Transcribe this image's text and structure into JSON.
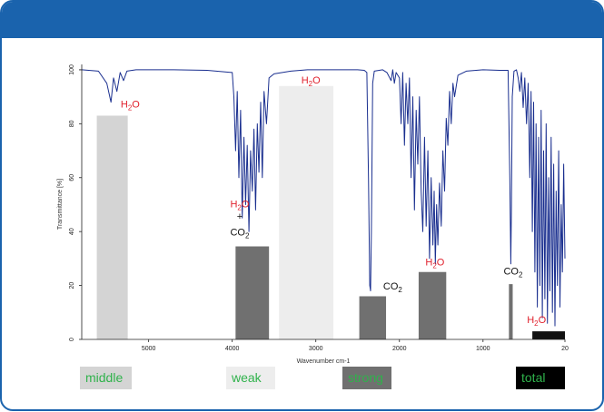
{
  "chart_data": {
    "type": "line",
    "title": "",
    "xlabel": "Wavenumber cm-1",
    "ylabel": "Transmittance [%]",
    "xlim": [
      5800,
      20
    ],
    "ylim": [
      0,
      102
    ],
    "x_ticks": [
      5000,
      4000,
      3000,
      2000,
      1000,
      20
    ],
    "y_ticks": [
      0,
      20,
      40,
      60,
      80,
      100
    ],
    "line_color": "#1a2f8f",
    "series": [
      {
        "points": [
          [
            5800,
            100
          ],
          [
            5600,
            99.5
          ],
          [
            5500,
            95
          ],
          [
            5450,
            88
          ],
          [
            5420,
            97
          ],
          [
            5380,
            92
          ],
          [
            5340,
            99
          ],
          [
            5300,
            96
          ],
          [
            5260,
            99.5
          ],
          [
            5150,
            100
          ],
          [
            4700,
            100
          ],
          [
            4300,
            99.8
          ],
          [
            4000,
            99
          ],
          [
            3980,
            90
          ],
          [
            3960,
            70
          ],
          [
            3940,
            92
          ],
          [
            3920,
            60
          ],
          [
            3900,
            85
          ],
          [
            3880,
            45
          ],
          [
            3860,
            75
          ],
          [
            3840,
            50
          ],
          [
            3820,
            72
          ],
          [
            3800,
            40
          ],
          [
            3780,
            70
          ],
          [
            3760,
            55
          ],
          [
            3740,
            78
          ],
          [
            3720,
            48
          ],
          [
            3700,
            80
          ],
          [
            3680,
            62
          ],
          [
            3660,
            88
          ],
          [
            3640,
            60
          ],
          [
            3620,
            92
          ],
          [
            3590,
            80
          ],
          [
            3560,
            97
          ],
          [
            3500,
            98.5
          ],
          [
            3300,
            99.5
          ],
          [
            3100,
            100
          ],
          [
            2800,
            100
          ],
          [
            2500,
            100
          ],
          [
            2420,
            99.8
          ],
          [
            2390,
            99
          ],
          [
            2370,
            60
          ],
          [
            2355,
            20
          ],
          [
            2345,
            18
          ],
          [
            2335,
            40
          ],
          [
            2320,
            95
          ],
          [
            2300,
            99.5
          ],
          [
            2200,
            100
          ],
          [
            2150,
            99
          ],
          [
            2100,
            96
          ],
          [
            2080,
            100
          ],
          [
            2060,
            95
          ],
          [
            2040,
            99
          ],
          [
            2000,
            97
          ],
          [
            1980,
            80
          ],
          [
            1960,
            99
          ],
          [
            1940,
            72
          ],
          [
            1920,
            95
          ],
          [
            1900,
            80
          ],
          [
            1880,
            97
          ],
          [
            1860,
            60
          ],
          [
            1840,
            90
          ],
          [
            1820,
            48
          ],
          [
            1800,
            85
          ],
          [
            1780,
            65
          ],
          [
            1760,
            90
          ],
          [
            1740,
            55
          ],
          [
            1720,
            40
          ],
          [
            1700,
            75
          ],
          [
            1680,
            42
          ],
          [
            1660,
            70
          ],
          [
            1640,
            30
          ],
          [
            1620,
            60
          ],
          [
            1600,
            35
          ],
          [
            1585,
            55
          ],
          [
            1570,
            28
          ],
          [
            1555,
            50
          ],
          [
            1540,
            35
          ],
          [
            1520,
            58
          ],
          [
            1500,
            42
          ],
          [
            1480,
            70
          ],
          [
            1460,
            55
          ],
          [
            1440,
            82
          ],
          [
            1420,
            72
          ],
          [
            1400,
            92
          ],
          [
            1380,
            80
          ],
          [
            1360,
            95
          ],
          [
            1340,
            90
          ],
          [
            1300,
            98
          ],
          [
            1200,
            99.5
          ],
          [
            1000,
            100
          ],
          [
            800,
            99.8
          ],
          [
            700,
            99.8
          ],
          [
            680,
            60
          ],
          [
            668,
            28
          ],
          [
            660,
            50
          ],
          [
            650,
            90
          ],
          [
            630,
            99.5
          ],
          [
            600,
            100
          ],
          [
            580,
            97
          ],
          [
            560,
            92
          ],
          [
            540,
            99
          ],
          [
            520,
            86
          ],
          [
            500,
            97
          ],
          [
            480,
            80
          ],
          [
            460,
            95
          ],
          [
            440,
            60
          ],
          [
            425,
            92
          ],
          [
            410,
            40
          ],
          [
            395,
            88
          ],
          [
            380,
            25
          ],
          [
            365,
            80
          ],
          [
            350,
            12
          ],
          [
            335,
            75
          ],
          [
            320,
            20
          ],
          [
            305,
            85
          ],
          [
            290,
            8
          ],
          [
            275,
            70
          ],
          [
            260,
            15
          ],
          [
            245,
            80
          ],
          [
            230,
            6
          ],
          [
            215,
            60
          ],
          [
            200,
            18
          ],
          [
            185,
            75
          ],
          [
            170,
            10
          ],
          [
            155,
            65
          ],
          [
            140,
            5
          ],
          [
            125,
            55
          ],
          [
            110,
            20
          ],
          [
            95,
            70
          ],
          [
            80,
            12
          ],
          [
            65,
            50
          ],
          [
            50,
            25
          ],
          [
            35,
            65
          ],
          [
            20,
            30
          ]
        ]
      }
    ],
    "bars": [
      {
        "name": "middle",
        "x0": 5620,
        "x1": 5250,
        "value": 83,
        "color": "#d4d4d4"
      },
      {
        "name": "H2O+CO2",
        "x0": 3960,
        "x1": 3560,
        "value": 34.5,
        "color": "#707070"
      },
      {
        "name": "weak",
        "x0": 3440,
        "x1": 2790,
        "value": 94,
        "color": "#ededed"
      },
      {
        "name": "CO2",
        "x0": 2480,
        "x1": 2160,
        "value": 16,
        "color": "#707070"
      },
      {
        "name": "strong",
        "x0": 1770,
        "x1": 1440,
        "value": 25,
        "color": "#707070"
      },
      {
        "name": "CO2",
        "x0": 690,
        "x1": 645,
        "value": 20.5,
        "color": "#707070"
      },
      {
        "name": "total",
        "x0": 410,
        "x1": 20,
        "value": 3,
        "color": "#111111"
      }
    ],
    "annotations": [
      {
        "label": "H2O",
        "x": 5220,
        "y": 86,
        "color": "#e0202c",
        "kind": "h2o"
      },
      {
        "label": "H2O",
        "x": 3060,
        "y": 95,
        "color": "#e0202c",
        "kind": "h2o"
      },
      {
        "label": "H2O",
        "x": 3910,
        "y": 49,
        "color": "#e0202c",
        "kind": "h2o"
      },
      {
        "label": "+",
        "x": 3910,
        "y": 44.5,
        "color": "#111111",
        "kind": "plain"
      },
      {
        "label": "CO2",
        "x": 3910,
        "y": 38.5,
        "color": "#111111",
        "kind": "co2"
      },
      {
        "label": "CO2",
        "x": 2080,
        "y": 18.5,
        "color": "#111111",
        "kind": "co2"
      },
      {
        "label": "H2O",
        "x": 1575,
        "y": 27.5,
        "color": "#e0202c",
        "kind": "h2o"
      },
      {
        "label": "CO2",
        "x": 640,
        "y": 24,
        "color": "#111111",
        "kind": "co2"
      },
      {
        "label": "H2O",
        "x": 360,
        "y": 6,
        "color": "#e0202c",
        "kind": "h2o"
      }
    ]
  },
  "legend": [
    {
      "label": "middle",
      "bg": "#d4d4d4"
    },
    {
      "label": "weak",
      "bg": "#ededed"
    },
    {
      "label": "strong",
      "bg": "#707070"
    },
    {
      "label": "total",
      "bg": "#000000"
    }
  ]
}
